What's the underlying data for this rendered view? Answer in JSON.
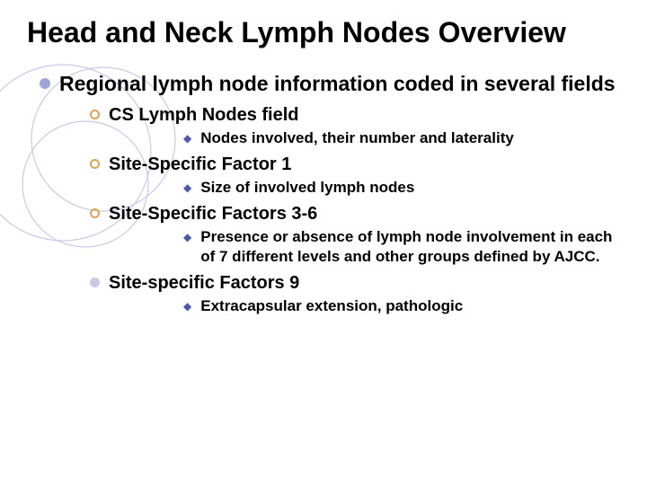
{
  "colors": {
    "circle_stroke": "#c9c9e6",
    "l1_bullet": "#9fa4d6",
    "l2_circle_border": "#d9a55a",
    "l2_filled": "#c9c9e6",
    "l3_diamond": "#4a5aa8",
    "text": "#000000"
  },
  "title": "Head and Neck Lymph Nodes Overview",
  "l1_text": "Regional lymph node information coded in several fields",
  "items": [
    {
      "style": "open",
      "label": "CS Lymph Nodes field",
      "sub": "Nodes involved, their number and laterality"
    },
    {
      "style": "open",
      "label": "Site-Specific Factor 1",
      "sub": "Size of involved lymph nodes"
    },
    {
      "style": "open",
      "label": "Site-Specific Factors 3-6",
      "sub": "Presence or absence of lymph node involvement in each of 7 different levels and other groups defined by AJCC."
    },
    {
      "style": "filled",
      "label": "Site-specific Factors 9",
      "sub": "Extracapsular extension, pathologic"
    }
  ]
}
